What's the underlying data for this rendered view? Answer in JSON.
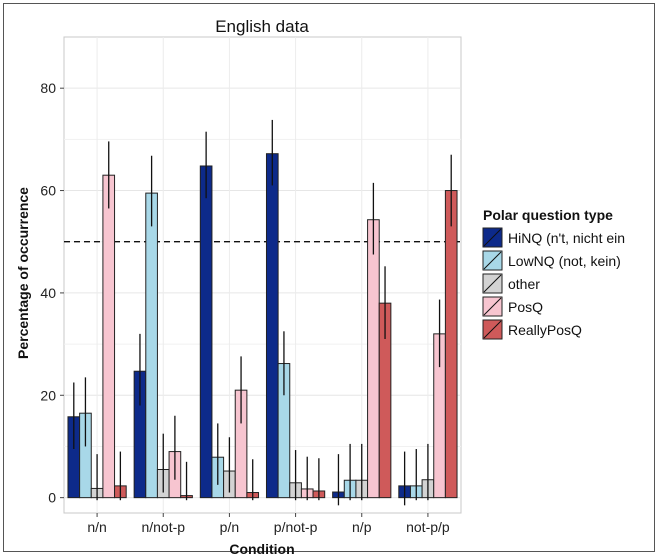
{
  "chart_data": {
    "type": "bar",
    "title": "English data",
    "xlabel": "Condition",
    "ylabel": "Percentage of occurrence",
    "ylim": [
      -3,
      90
    ],
    "yticks": [
      0,
      20,
      40,
      60,
      80
    ],
    "grid": true,
    "legend_placement": "right",
    "reference_line": 50,
    "categories": [
      "n/n",
      "n/not-p",
      "p/n",
      "p/not-p",
      "n/p",
      "not-p/p"
    ],
    "legend_title": "Polar question type",
    "series": [
      {
        "name": "HiNQ (n't, nicht ein",
        "color": "#0d2a8a",
        "values": [
          15.8,
          24.7,
          64.8,
          67.2,
          1.1,
          2.3
        ],
        "err_low": [
          9.5,
          18.0,
          58.5,
          61.0,
          -1.5,
          -1.5
        ],
        "err_high": [
          22.5,
          32.0,
          71.5,
          73.8,
          8.5,
          9.0
        ]
      },
      {
        "name": "LowNQ (not, kein)",
        "color": "#a8d8e8",
        "values": [
          16.5,
          59.5,
          7.9,
          26.2,
          3.4,
          2.3
        ],
        "err_low": [
          10.0,
          53.0,
          2.5,
          20.0,
          -0.5,
          -0.5
        ],
        "err_high": [
          23.5,
          66.8,
          14.5,
          32.5,
          10.5,
          9.5
        ]
      },
      {
        "name": "other",
        "color": "#d3d3d3",
        "values": [
          1.8,
          5.5,
          5.2,
          2.9,
          3.4,
          3.5
        ],
        "err_low": [
          -0.5,
          1.0,
          1.0,
          -0.5,
          -0.5,
          -0.5
        ],
        "err_high": [
          8.5,
          12.5,
          11.8,
          9.3,
          10.5,
          10.5
        ]
      },
      {
        "name": "PosQ",
        "color": "#f7c5d0",
        "values": [
          63.0,
          9.0,
          21.0,
          1.7,
          54.3,
          32.0
        ],
        "err_low": [
          56.5,
          3.5,
          14.5,
          -0.5,
          47.5,
          25.5
        ],
        "err_high": [
          69.6,
          16.0,
          27.6,
          8.0,
          61.5,
          38.7
        ]
      },
      {
        "name": "ReallyPosQ",
        "color": "#cf5a5a",
        "values": [
          2.3,
          0.4,
          1.0,
          1.3,
          38.0,
          60.0
        ],
        "err_low": [
          -0.5,
          -0.5,
          -0.5,
          -0.5,
          31.0,
          53.0
        ],
        "err_high": [
          9.0,
          7.0,
          7.5,
          7.7,
          45.2,
          67.0
        ]
      }
    ]
  }
}
